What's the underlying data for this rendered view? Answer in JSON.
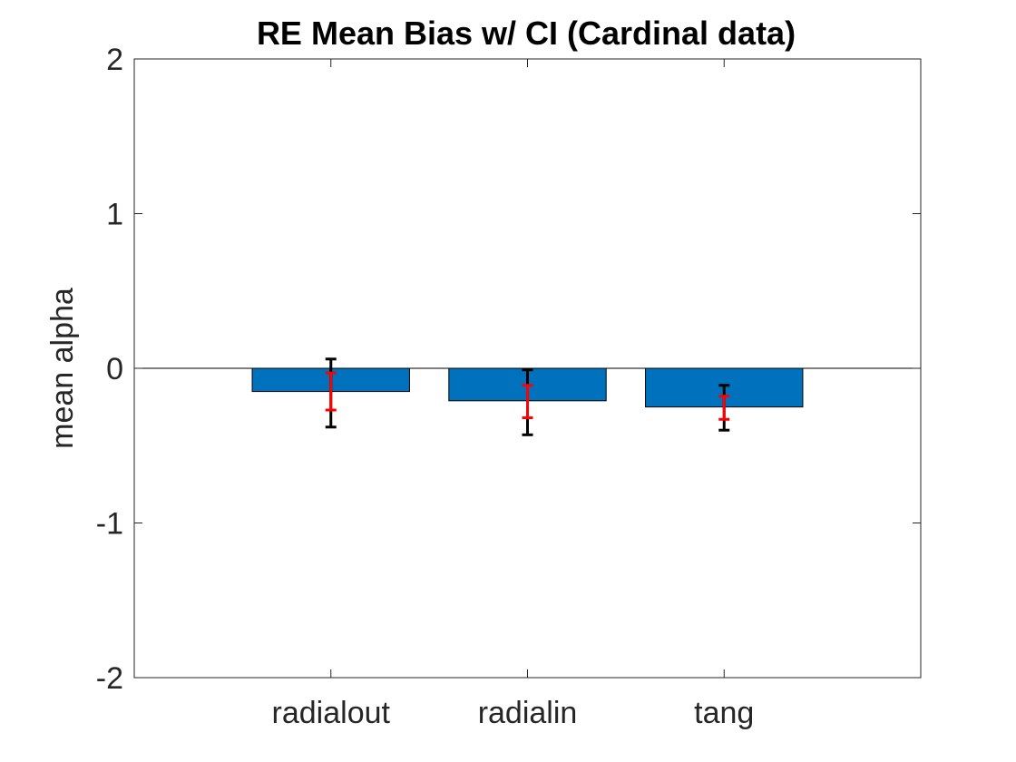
{
  "chart_data": {
    "type": "bar",
    "title": "RE Mean Bias w/ CI (Cardinal data)",
    "xlabel": "",
    "ylabel": "mean alpha",
    "categories": [
      "radialout",
      "radialin",
      "tang"
    ],
    "values": [
      -0.15,
      -0.21,
      -0.25
    ],
    "ylim": [
      -2,
      2
    ],
    "yticks": [
      -2,
      -1,
      0,
      1,
      2
    ],
    "ytick_labels": [
      "-2",
      "-1",
      "0",
      "1",
      "2"
    ],
    "xlim": [
      0,
      4
    ],
    "error_bars": {
      "outer_black": [
        {
          "low": -0.38,
          "high": 0.06
        },
        {
          "low": -0.43,
          "high": -0.01
        },
        {
          "low": -0.4,
          "high": -0.11
        }
      ],
      "inner_red": [
        {
          "low": -0.27,
          "high": -0.03
        },
        {
          "low": -0.32,
          "high": -0.11
        },
        {
          "low": -0.33,
          "high": -0.18
        }
      ]
    },
    "grid": false,
    "legend": "none",
    "colors": {
      "bar_fill": "#0072BD",
      "outer_error": "#000000",
      "inner_error": "#FF0000",
      "axis": "#262626"
    }
  }
}
